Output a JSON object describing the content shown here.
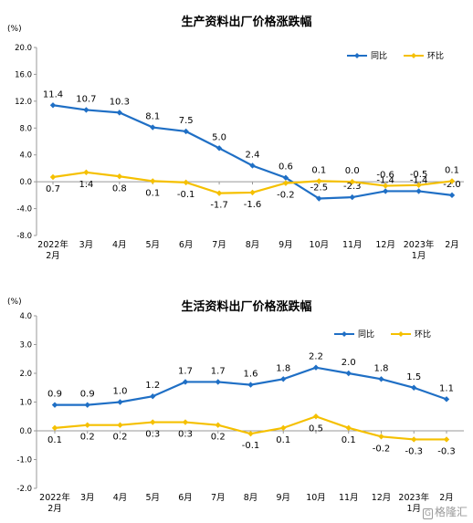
{
  "watermark": "格隆汇",
  "chart_data": [
    {
      "type": "line",
      "title": "生产资料出厂价格涨跌幅",
      "unit": "(%)",
      "categories": [
        [
          "2022年",
          "2月"
        ],
        [
          "3月"
        ],
        [
          "4月"
        ],
        [
          "5月"
        ],
        [
          "6月"
        ],
        [
          "7月"
        ],
        [
          "8月"
        ],
        [
          "9月"
        ],
        [
          "10月"
        ],
        [
          "11月"
        ],
        [
          "12月"
        ],
        [
          "2023年",
          "1月"
        ],
        [
          "2月"
        ]
      ],
      "yticks": [
        "20.0",
        "16.0",
        "12.0",
        "8.0",
        "4.0",
        "0.0",
        "-4.0",
        "-8.0"
      ],
      "ylim": [
        -8,
        20
      ],
      "series": [
        {
          "name": "同比",
          "color": "#1f6fc5",
          "values": [
            11.4,
            10.7,
            10.3,
            8.1,
            7.5,
            5.0,
            2.4,
            0.6,
            -2.5,
            -2.3,
            -1.4,
            -1.4,
            -2.0
          ],
          "labels": [
            "11.4",
            "10.7",
            "10.3",
            "8.1",
            "7.5",
            "5.0",
            "2.4",
            "0.6",
            "-2.5",
            "-2.3",
            "-1.4",
            "-1.4",
            "-2.0"
          ]
        },
        {
          "name": "环比",
          "color": "#f5c000",
          "values": [
            0.7,
            1.4,
            0.8,
            0.1,
            -0.1,
            -1.7,
            -1.6,
            -0.2,
            0.1,
            0.0,
            -0.6,
            -0.5,
            0.1
          ],
          "labels": [
            "0.7",
            "1.4",
            "0.8",
            "0.1",
            "-0.1",
            "-1.7",
            "-1.6",
            "-0.2",
            "0.1",
            "0.0",
            "-0.6",
            "-0.5",
            "0.1"
          ]
        }
      ],
      "legend": "top-right",
      "grid": false
    },
    {
      "type": "line",
      "title": "生活资料出厂价格涨跌幅",
      "unit": "(%)",
      "categories": [
        [
          "2022年",
          "2月"
        ],
        [
          "3月"
        ],
        [
          "4月"
        ],
        [
          "5月"
        ],
        [
          "6月"
        ],
        [
          "7月"
        ],
        [
          "8月"
        ],
        [
          "9月"
        ],
        [
          "10月"
        ],
        [
          "11月"
        ],
        [
          "12月"
        ],
        [
          "2023年",
          "1月"
        ],
        [
          "2月"
        ]
      ],
      "yticks": [
        "4.0",
        "3.0",
        "2.0",
        "1.0",
        "0.0",
        "-1.0",
        "-2.0"
      ],
      "ylim": [
        -2,
        4
      ],
      "series": [
        {
          "name": "同比",
          "color": "#1f6fc5",
          "values": [
            0.9,
            0.9,
            1.0,
            1.2,
            1.7,
            1.7,
            1.6,
            1.8,
            2.2,
            2.0,
            1.8,
            1.5,
            1.1
          ],
          "labels": [
            "0.9",
            "0.9",
            "1.0",
            "1.2",
            "1.7",
            "1.7",
            "1.6",
            "1.8",
            "2.2",
            "2.0",
            "1.8",
            "1.5",
            "1.1"
          ]
        },
        {
          "name": "环比",
          "color": "#f5c000",
          "values": [
            0.1,
            0.2,
            0.2,
            0.3,
            0.3,
            0.2,
            -0.1,
            0.1,
            0.5,
            0.1,
            -0.2,
            -0.3,
            -0.3
          ],
          "labels": [
            "0.1",
            "0.2",
            "0.2",
            "0.3",
            "0.3",
            "0.2",
            "-0.1",
            "0.1",
            "0.5",
            "0.1",
            "-0.2",
            "-0.3",
            "-0.3"
          ]
        }
      ],
      "legend": "top-right",
      "grid": false
    }
  ]
}
